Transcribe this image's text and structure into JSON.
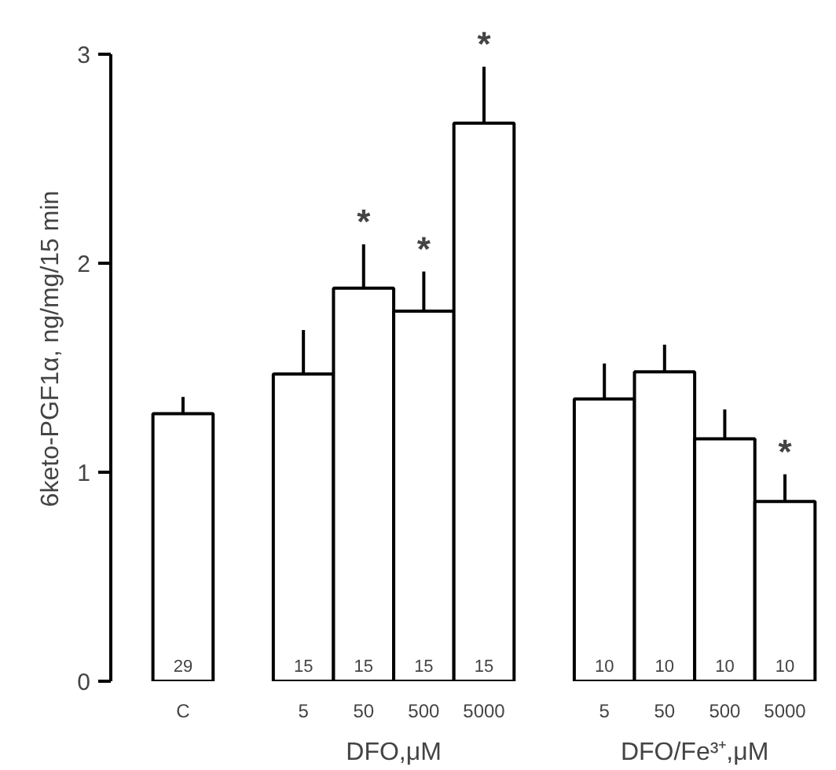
{
  "chart_data": {
    "type": "bar",
    "ylabel": "6keto-PGF1α, ng/mg/15 min",
    "categories": [
      "C",
      null,
      "5",
      "50",
      "500",
      "5000",
      null,
      "5",
      "50",
      "500",
      "5000"
    ],
    "values": [
      1.28,
      null,
      1.47,
      1.88,
      1.77,
      2.67,
      null,
      1.35,
      1.48,
      1.16,
      0.86
    ],
    "errors": [
      [
        1.28,
        1.36
      ],
      null,
      [
        1.47,
        1.68
      ],
      [
        1.88,
        2.09
      ],
      [
        1.77,
        1.96
      ],
      [
        2.67,
        2.94
      ],
      null,
      [
        1.35,
        1.52
      ],
      [
        1.48,
        1.61
      ],
      [
        1.16,
        1.3
      ],
      [
        0.86,
        0.99
      ]
    ],
    "value_labels": [
      null,
      null,
      null,
      "*",
      "*",
      "*",
      null,
      null,
      null,
      null,
      "*"
    ],
    "color": "#ffffff",
    "ylim": [
      0,
      3
    ],
    "yticks": [
      0,
      1,
      2,
      3
    ],
    "grid": false,
    "annotations": [
      "29",
      "15",
      "15",
      "15",
      "15",
      "10",
      "10",
      "10",
      "10",
      "DFO,μM",
      "DFO/Fe³⁺,μM"
    ]
  }
}
